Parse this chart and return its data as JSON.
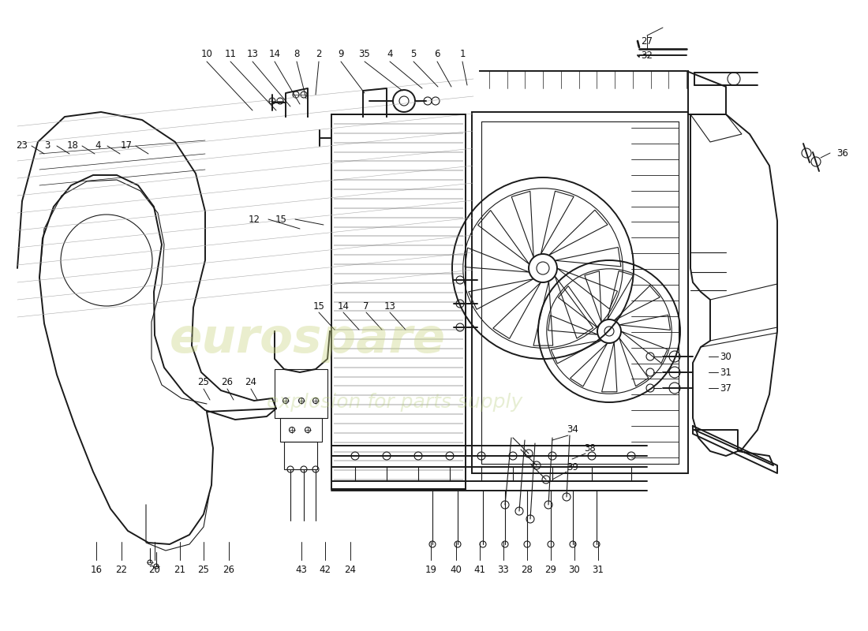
{
  "bg_color": "#ffffff",
  "line_color": "#1a1a1a",
  "label_color": "#111111",
  "wm1_color": "#c8d480",
  "wm2_color": "#b0c870",
  "label_fontsize": 8.5,
  "figsize": [
    11.0,
    8.0
  ],
  "dpi": 100,
  "top_labels": [
    [
      "10",
      262,
      68
    ],
    [
      "11",
      290,
      68
    ],
    [
      "13",
      318,
      68
    ],
    [
      "14",
      346,
      68
    ],
    [
      "8",
      374,
      68
    ],
    [
      "2",
      402,
      68
    ],
    [
      "9",
      430,
      68
    ],
    [
      "35",
      460,
      68
    ],
    [
      "4",
      492,
      68
    ],
    [
      "5",
      522,
      68
    ],
    [
      "6",
      552,
      68
    ],
    [
      "1",
      584,
      68
    ]
  ],
  "left_labels": [
    [
      "23",
      28,
      185
    ],
    [
      "3",
      60,
      185
    ],
    [
      "18",
      92,
      185
    ],
    [
      "4",
      124,
      185
    ],
    [
      "17",
      160,
      185
    ],
    [
      "12",
      322,
      278
    ],
    [
      "15",
      356,
      278
    ]
  ],
  "mid_labels": [
    [
      "15",
      404,
      388
    ],
    [
      "14",
      435,
      388
    ],
    [
      "7",
      464,
      388
    ],
    [
      "13",
      494,
      388
    ]
  ],
  "right_labels_top": [
    [
      "27",
      820,
      58
    ],
    [
      "32",
      820,
      76
    ]
  ],
  "right_labels_side": [
    [
      "36",
      1060,
      194
    ],
    [
      "30",
      910,
      452
    ],
    [
      "31",
      910,
      472
    ],
    [
      "37",
      910,
      492
    ],
    [
      "34",
      726,
      544
    ],
    [
      "38",
      748,
      568
    ],
    [
      "39",
      726,
      592
    ]
  ],
  "bottom_labels_left": [
    [
      "16",
      122,
      712
    ],
    [
      "22",
      154,
      712
    ],
    [
      "20",
      196,
      712
    ],
    [
      "21",
      228,
      712
    ],
    [
      "25",
      258,
      712
    ],
    [
      "26",
      290,
      712
    ],
    [
      "43",
      382,
      712
    ],
    [
      "42",
      412,
      712
    ],
    [
      "24",
      444,
      712
    ]
  ],
  "mid_bracket_labels": [
    [
      "25",
      258,
      480
    ],
    [
      "26",
      290,
      480
    ],
    [
      "24",
      320,
      480
    ]
  ],
  "bottom_labels_right": [
    [
      "19",
      546,
      712
    ],
    [
      "40",
      578,
      712
    ],
    [
      "41",
      610,
      712
    ],
    [
      "33",
      640,
      712
    ],
    [
      "28",
      668,
      712
    ],
    [
      "29",
      698,
      712
    ],
    [
      "30",
      728,
      712
    ],
    [
      "31",
      758,
      712
    ]
  ]
}
